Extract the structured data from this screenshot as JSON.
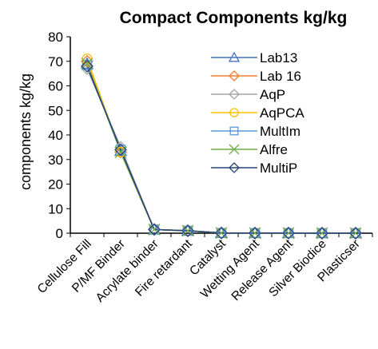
{
  "chart_data": {
    "type": "line",
    "title": "Compact Components kg/kg",
    "ylabel": "components kg/kg",
    "xlabel": "",
    "ylim": [
      0,
      80
    ],
    "yticks": [
      0,
      10,
      20,
      30,
      40,
      50,
      60,
      70,
      80
    ],
    "grid": false,
    "legend_position": "top-right",
    "categories": [
      "Cellulose Fill",
      "P/MF Binder",
      "Acrylate binder",
      "Fire retardant",
      "Catalyst",
      "Wetting Agent",
      "Release Agent",
      "Silver Biodice",
      "Plasticser"
    ],
    "series": [
      {
        "name": "Lab13",
        "color": "#4472c4",
        "marker": "triangle",
        "values": [
          69,
          33.5,
          1.5,
          1,
          0.1,
          0.05,
          0.05,
          0.02,
          0.02
        ]
      },
      {
        "name": "Lab 16",
        "color": "#ed7d31",
        "marker": "diamond",
        "values": [
          70,
          33,
          1.5,
          1,
          0.1,
          0.05,
          0.05,
          0.02,
          0.02
        ]
      },
      {
        "name": "AqP",
        "color": "#a5a5a5",
        "marker": "diamond",
        "values": [
          67,
          35,
          1.5,
          1,
          0.1,
          0.05,
          0.05,
          0.02,
          0.02
        ]
      },
      {
        "name": "AqPCA",
        "color": "#ffc000",
        "marker": "circle",
        "values": [
          71,
          33,
          1.5,
          1,
          0.1,
          0.05,
          0.05,
          0.02,
          0.02
        ]
      },
      {
        "name": "MultIm",
        "color": "#5b9bd5",
        "marker": "square",
        "values": [
          68.5,
          34,
          1.5,
          1,
          0.1,
          0.05,
          0.05,
          0.02,
          0.02
        ]
      },
      {
        "name": "Alfre",
        "color": "#70ad47",
        "marker": "x",
        "values": [
          69,
          33,
          1.5,
          1,
          0.1,
          0.05,
          0.05,
          0.02,
          0.02
        ]
      },
      {
        "name": "MultiP",
        "color": "#264478",
        "marker": "diamond",
        "values": [
          68,
          34,
          1.5,
          1,
          0.1,
          0.05,
          0.05,
          0.02,
          0.02
        ]
      }
    ]
  }
}
